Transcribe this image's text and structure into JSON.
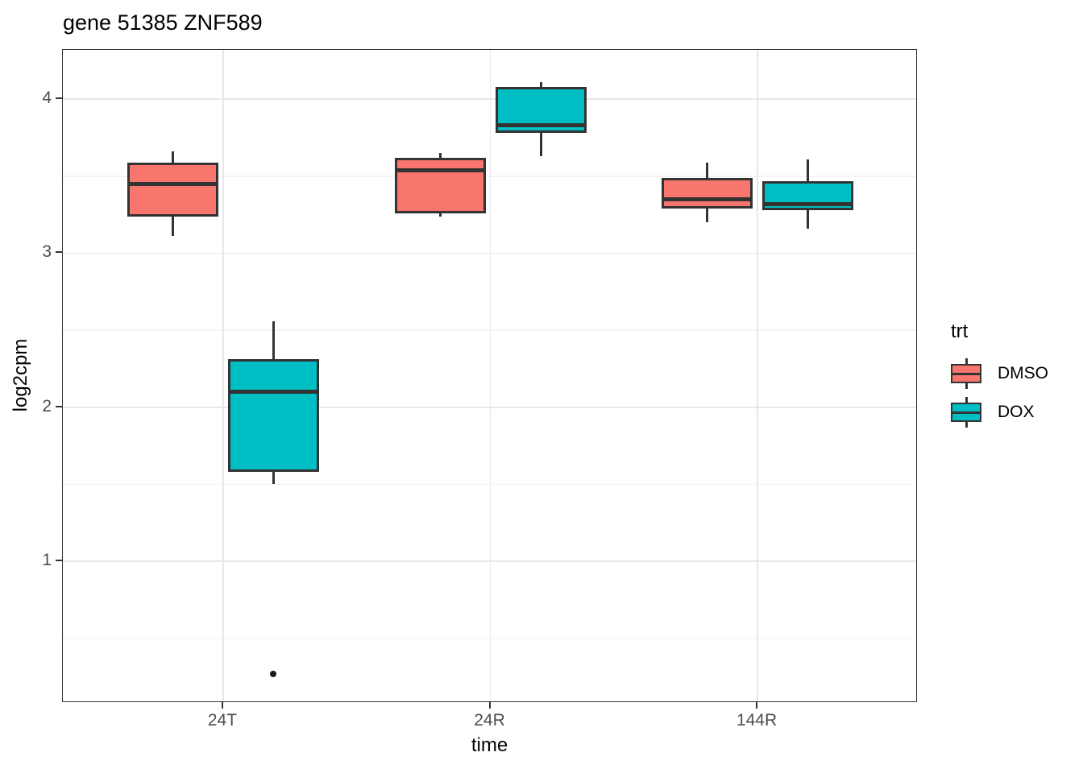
{
  "title": "gene 51385 ZNF589",
  "axes": {
    "x": {
      "label": "time",
      "categories": [
        "24T",
        "24R",
        "144R"
      ]
    },
    "y": {
      "label": "log2cpm",
      "ticks": [
        4,
        3,
        2,
        1
      ],
      "minor_ticks": [
        3.5,
        2.5,
        1.5,
        0.5
      ]
    }
  },
  "legend": {
    "title": "trt",
    "items": [
      {
        "label": "DMSO",
        "color": "#F8766D"
      },
      {
        "label": "DOX",
        "color": "#00BFC4"
      }
    ]
  },
  "colors": {
    "dmso_fill": "#F8766D",
    "dox_fill": "#00BFC4",
    "box_stroke": "#333333",
    "grid_major": "#e7e7e7",
    "grid_minor": "#f3f3f3",
    "axis_text": "#4d4d4d",
    "panel_border": "#333333"
  },
  "chart_data": {
    "type": "boxplot",
    "title": "gene 51385 ZNF589",
    "xlabel": "time",
    "ylabel": "log2cpm",
    "categories": [
      "24T",
      "24R",
      "144R"
    ],
    "ylim": [
      0.08,
      4.32
    ],
    "y_major_ticks": [
      1,
      2,
      3,
      4
    ],
    "y_minor_ticks": [
      0.5,
      1.5,
      2.5,
      3.5
    ],
    "grid": true,
    "legend_position": "right",
    "legend_title": "trt",
    "groups": [
      {
        "name": "DMSO",
        "color": "#F8766D",
        "boxes": [
          {
            "category": "24T",
            "whisker_low": 3.11,
            "q1": 3.24,
            "median": 3.45,
            "q3": 3.59,
            "whisker_high": 3.66,
            "outliers": []
          },
          {
            "category": "24R",
            "whisker_low": 3.24,
            "q1": 3.26,
            "median": 3.54,
            "q3": 3.62,
            "whisker_high": 3.65,
            "outliers": []
          },
          {
            "category": "144R",
            "whisker_low": 3.2,
            "q1": 3.29,
            "median": 3.35,
            "q3": 3.49,
            "whisker_high": 3.59,
            "outliers": []
          }
        ]
      },
      {
        "name": "DOX",
        "color": "#00BFC4",
        "boxes": [
          {
            "category": "24T",
            "whisker_low": 1.5,
            "q1": 1.58,
            "median": 2.1,
            "q3": 2.31,
            "whisker_high": 2.56,
            "outliers": [
              0.27
            ]
          },
          {
            "category": "24R",
            "whisker_low": 3.63,
            "q1": 3.78,
            "median": 3.83,
            "q3": 4.08,
            "whisker_high": 4.11,
            "outliers": []
          },
          {
            "category": "144R",
            "whisker_low": 3.16,
            "q1": 3.28,
            "median": 3.32,
            "q3": 3.47,
            "whisker_high": 3.61,
            "outliers": []
          }
        ]
      }
    ]
  }
}
